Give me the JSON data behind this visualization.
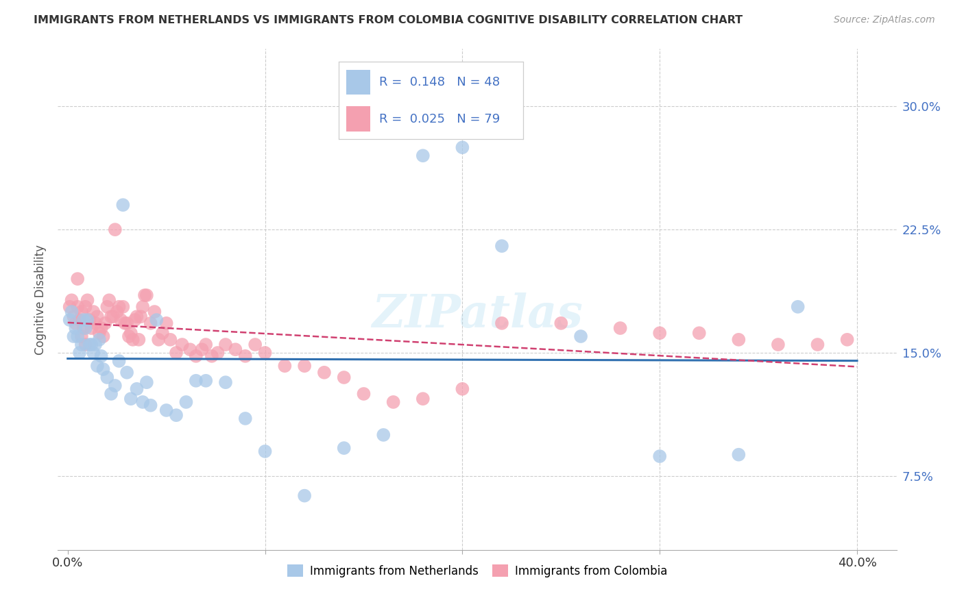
{
  "title": "IMMIGRANTS FROM NETHERLANDS VS IMMIGRANTS FROM COLOMBIA COGNITIVE DISABILITY CORRELATION CHART",
  "source": "Source: ZipAtlas.com",
  "ylabel": "Cognitive Disability",
  "yticks": [
    0.075,
    0.15,
    0.225,
    0.3
  ],
  "ytick_labels": [
    "7.5%",
    "15.0%",
    "22.5%",
    "30.0%"
  ],
  "xlim": [
    -0.005,
    0.42
  ],
  "ylim": [
    0.03,
    0.335
  ],
  "series1_label": "Immigrants from Netherlands",
  "series2_label": "Immigrants from Colombia",
  "R1": 0.148,
  "N1": 48,
  "R2": 0.025,
  "N2": 79,
  "color1": "#a8c8e8",
  "color2": "#f4a0b0",
  "line_color1": "#3070b0",
  "line_color2": "#d04070",
  "watermark": "ZIPatlas",
  "netherlands_x": [
    0.001,
    0.002,
    0.003,
    0.004,
    0.005,
    0.006,
    0.007,
    0.008,
    0.009,
    0.01,
    0.011,
    0.012,
    0.013,
    0.014,
    0.015,
    0.016,
    0.017,
    0.018,
    0.02,
    0.022,
    0.024,
    0.026,
    0.028,
    0.03,
    0.032,
    0.035,
    0.038,
    0.04,
    0.042,
    0.045,
    0.05,
    0.055,
    0.06,
    0.065,
    0.07,
    0.08,
    0.09,
    0.1,
    0.12,
    0.14,
    0.16,
    0.18,
    0.2,
    0.22,
    0.26,
    0.3,
    0.34,
    0.37
  ],
  "netherlands_y": [
    0.17,
    0.175,
    0.16,
    0.165,
    0.16,
    0.15,
    0.155,
    0.17,
    0.165,
    0.17,
    0.155,
    0.155,
    0.15,
    0.155,
    0.142,
    0.158,
    0.148,
    0.14,
    0.135,
    0.125,
    0.13,
    0.145,
    0.24,
    0.138,
    0.122,
    0.128,
    0.12,
    0.132,
    0.118,
    0.17,
    0.115,
    0.112,
    0.12,
    0.133,
    0.133,
    0.132,
    0.11,
    0.09,
    0.063,
    0.092,
    0.1,
    0.27,
    0.275,
    0.215,
    0.16,
    0.087,
    0.088,
    0.178
  ],
  "colombia_x": [
    0.001,
    0.002,
    0.003,
    0.004,
    0.005,
    0.006,
    0.007,
    0.008,
    0.009,
    0.01,
    0.011,
    0.012,
    0.013,
    0.014,
    0.015,
    0.016,
    0.017,
    0.018,
    0.019,
    0.02,
    0.021,
    0.022,
    0.023,
    0.024,
    0.025,
    0.026,
    0.027,
    0.028,
    0.029,
    0.03,
    0.031,
    0.032,
    0.033,
    0.034,
    0.035,
    0.036,
    0.037,
    0.038,
    0.039,
    0.04,
    0.042,
    0.044,
    0.046,
    0.048,
    0.05,
    0.052,
    0.055,
    0.058,
    0.062,
    0.065,
    0.068,
    0.07,
    0.073,
    0.076,
    0.08,
    0.085,
    0.09,
    0.095,
    0.1,
    0.11,
    0.12,
    0.13,
    0.14,
    0.15,
    0.165,
    0.18,
    0.2,
    0.22,
    0.25,
    0.28,
    0.3,
    0.32,
    0.34,
    0.36,
    0.38,
    0.395,
    0.005,
    0.007,
    0.009
  ],
  "colombia_y": [
    0.178,
    0.182,
    0.172,
    0.168,
    0.178,
    0.17,
    0.175,
    0.165,
    0.178,
    0.182,
    0.17,
    0.165,
    0.175,
    0.168,
    0.172,
    0.162,
    0.165,
    0.16,
    0.168,
    0.178,
    0.182,
    0.172,
    0.172,
    0.225,
    0.175,
    0.178,
    0.17,
    0.178,
    0.168,
    0.168,
    0.16,
    0.162,
    0.158,
    0.17,
    0.172,
    0.158,
    0.172,
    0.178,
    0.185,
    0.185,
    0.168,
    0.175,
    0.158,
    0.162,
    0.168,
    0.158,
    0.15,
    0.155,
    0.152,
    0.148,
    0.152,
    0.155,
    0.148,
    0.15,
    0.155,
    0.152,
    0.148,
    0.155,
    0.15,
    0.142,
    0.142,
    0.138,
    0.135,
    0.125,
    0.12,
    0.122,
    0.128,
    0.168,
    0.168,
    0.165,
    0.162,
    0.162,
    0.158,
    0.155,
    0.155,
    0.158,
    0.195,
    0.16,
    0.155
  ]
}
